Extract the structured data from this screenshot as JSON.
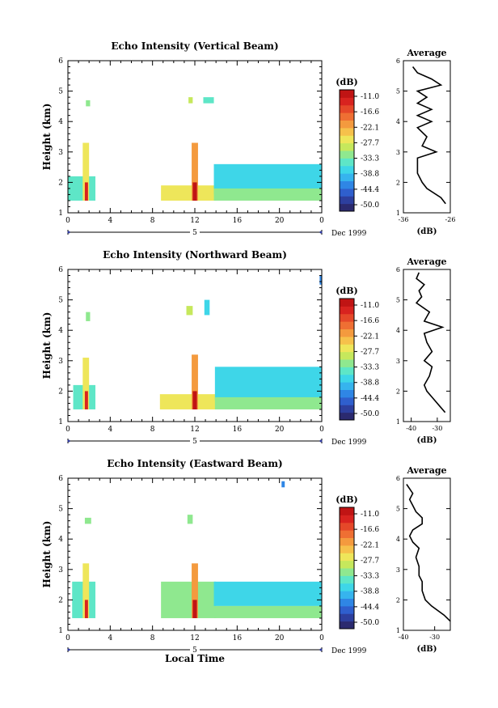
{
  "figure": {
    "xlabel": "Local Time",
    "x_ticks": [
      "0",
      "4",
      "8",
      "12",
      "16",
      "20",
      "0"
    ],
    "day_label": "5",
    "date_label": "Dec 1999",
    "y_ticks": [
      "1",
      "2",
      "3",
      "4",
      "5",
      "6"
    ],
    "ylabel": "Height (km)",
    "colorbar_unit": "(dB)",
    "colorbar_ticks": [
      "-11.0",
      "-16.6",
      "-22.1",
      "-27.7",
      "-33.3",
      "-38.8",
      "-44.4",
      "-50.0"
    ],
    "colors": {
      "scale": [
        "#2b2a6f",
        "#2d3f9e",
        "#2f5fcd",
        "#2f86e5",
        "#36b4ee",
        "#3ed6e8",
        "#5ee6c7",
        "#8fe88f",
        "#c6e85c",
        "#eee65a",
        "#f6c14b",
        "#f49a3e",
        "#ef6f33",
        "#e54829",
        "#d8231f",
        "#c01414"
      ]
    },
    "avg_title": "Average",
    "avg_xlabel": "(dB)"
  },
  "chart_data": [
    {
      "type": "heatmap",
      "title": "Echo Intensity (Vertical Beam)",
      "xlabel": "",
      "ylabel": "Height (km)",
      "xlim": [
        0,
        24
      ],
      "ylim": [
        1,
        6
      ],
      "patches": [
        {
          "t0": 0.0,
          "t1": 2.6,
          "h0": 1.4,
          "h1": 2.2,
          "v": -34
        },
        {
          "t0": 1.4,
          "t1": 2.0,
          "h0": 1.4,
          "h1": 3.3,
          "v": -26
        },
        {
          "t0": 1.6,
          "t1": 1.9,
          "h0": 1.4,
          "h1": 2.0,
          "v": -14
        },
        {
          "t0": 1.7,
          "t1": 2.1,
          "h0": 4.5,
          "h1": 4.7,
          "v": -32
        },
        {
          "t0": 8.8,
          "t1": 14.0,
          "h0": 1.4,
          "h1": 1.9,
          "v": -28
        },
        {
          "t0": 11.7,
          "t1": 12.3,
          "h0": 1.4,
          "h1": 3.3,
          "v": -22
        },
        {
          "t0": 11.8,
          "t1": 12.2,
          "h0": 1.4,
          "h1": 2.0,
          "v": -12
        },
        {
          "t0": 11.4,
          "t1": 11.8,
          "h0": 4.6,
          "h1": 4.8,
          "v": -30
        },
        {
          "t0": 12.8,
          "t1": 13.8,
          "h0": 4.6,
          "h1": 4.8,
          "v": -33
        },
        {
          "t0": 13.8,
          "t1": 24.0,
          "h0": 1.6,
          "h1": 2.6,
          "v": -37
        },
        {
          "t0": 13.8,
          "t1": 24.0,
          "h0": 1.4,
          "h1": 1.8,
          "v": -31
        }
      ],
      "average": {
        "xlim": [
          -36,
          -26
        ],
        "xticks": [
          "-36",
          "-26"
        ],
        "h": [
          1.3,
          1.5,
          1.8,
          2.0,
          2.3,
          2.6,
          2.8,
          3.0,
          3.2,
          3.5,
          3.8,
          4.0,
          4.2,
          4.4,
          4.6,
          4.8,
          5.0,
          5.2,
          5.4,
          5.6,
          5.8
        ],
        "db": [
          -27,
          -28,
          -31,
          -32,
          -33,
          -33,
          -33,
          -29,
          -32,
          -31,
          -33,
          -30,
          -33,
          -30,
          -33,
          -31,
          -33,
          -28,
          -30,
          -33,
          -34
        ]
      }
    },
    {
      "type": "heatmap",
      "title": "Echo Intensity (Northward Beam)",
      "xlabel": "",
      "ylabel": "Height (km)",
      "xlim": [
        0,
        24
      ],
      "ylim": [
        1,
        6
      ],
      "patches": [
        {
          "t0": 0.5,
          "t1": 2.6,
          "h0": 1.4,
          "h1": 2.2,
          "v": -34
        },
        {
          "t0": 1.4,
          "t1": 2.0,
          "h0": 1.4,
          "h1": 3.1,
          "v": -26
        },
        {
          "t0": 1.6,
          "t1": 1.9,
          "h0": 1.4,
          "h1": 2.0,
          "v": -14
        },
        {
          "t0": 1.7,
          "t1": 2.1,
          "h0": 4.3,
          "h1": 4.6,
          "v": -32
        },
        {
          "t0": 8.7,
          "t1": 14.0,
          "h0": 1.4,
          "h1": 1.9,
          "v": -28
        },
        {
          "t0": 11.7,
          "t1": 12.3,
          "h0": 1.4,
          "h1": 3.2,
          "v": -22
        },
        {
          "t0": 11.8,
          "t1": 12.2,
          "h0": 1.4,
          "h1": 2.0,
          "v": -12
        },
        {
          "t0": 11.2,
          "t1": 11.8,
          "h0": 4.5,
          "h1": 4.8,
          "v": -30
        },
        {
          "t0": 12.9,
          "t1": 13.4,
          "h0": 4.5,
          "h1": 5.0,
          "v": -36
        },
        {
          "t0": 13.9,
          "t1": 24.0,
          "h0": 1.7,
          "h1": 2.8,
          "v": -37
        },
        {
          "t0": 13.9,
          "t1": 24.0,
          "h0": 1.4,
          "h1": 1.8,
          "v": -31
        },
        {
          "t0": 23.8,
          "t1": 24.0,
          "h0": 5.5,
          "h1": 5.8,
          "v": -42
        }
      ],
      "average": {
        "xlim": [
          -43,
          -25
        ],
        "xticks": [
          "-40",
          "-30"
        ],
        "h": [
          1.3,
          1.5,
          1.8,
          2.0,
          2.2,
          2.5,
          2.8,
          3.0,
          3.3,
          3.6,
          3.9,
          4.1,
          4.3,
          4.6,
          4.9,
          5.1,
          5.3,
          5.5,
          5.7,
          5.9
        ],
        "db": [
          -27,
          -29,
          -32,
          -34,
          -35,
          -33,
          -32,
          -35,
          -32,
          -34,
          -35,
          -28,
          -35,
          -33,
          -38,
          -36,
          -37,
          -35,
          -38,
          -37
        ]
      }
    },
    {
      "type": "heatmap",
      "title": "Echo Intensity (Eastward Beam)",
      "xlabel": "Local Time",
      "ylabel": "Height (km)",
      "xlim": [
        0,
        24
      ],
      "ylim": [
        1,
        6
      ],
      "patches": [
        {
          "t0": 0.4,
          "t1": 2.6,
          "h0": 1.4,
          "h1": 2.6,
          "v": -34
        },
        {
          "t0": 1.4,
          "t1": 2.0,
          "h0": 1.4,
          "h1": 3.2,
          "v": -27
        },
        {
          "t0": 1.6,
          "t1": 1.9,
          "h0": 1.4,
          "h1": 2.0,
          "v": -14
        },
        {
          "t0": 1.6,
          "t1": 2.2,
          "h0": 4.5,
          "h1": 4.7,
          "v": -32
        },
        {
          "t0": 8.8,
          "t1": 14.0,
          "h0": 1.4,
          "h1": 2.6,
          "v": -32
        },
        {
          "t0": 11.7,
          "t1": 12.3,
          "h0": 1.4,
          "h1": 3.2,
          "v": -22
        },
        {
          "t0": 11.8,
          "t1": 12.2,
          "h0": 1.4,
          "h1": 2.0,
          "v": -12
        },
        {
          "t0": 11.3,
          "t1": 11.8,
          "h0": 4.5,
          "h1": 4.8,
          "v": -31
        },
        {
          "t0": 13.8,
          "t1": 24.0,
          "h0": 1.8,
          "h1": 2.6,
          "v": -37
        },
        {
          "t0": 13.8,
          "t1": 24.0,
          "h0": 1.4,
          "h1": 1.8,
          "v": -31
        },
        {
          "t0": 20.2,
          "t1": 20.5,
          "h0": 5.7,
          "h1": 5.9,
          "v": -42
        }
      ],
      "average": {
        "xlim": [
          -40,
          -25
        ],
        "xticks": [
          "-40",
          "-30"
        ],
        "h": [
          1.3,
          1.5,
          1.8,
          2.0,
          2.3,
          2.6,
          2.8,
          3.1,
          3.4,
          3.7,
          3.9,
          4.1,
          4.3,
          4.5,
          4.7,
          4.9,
          5.1,
          5.3,
          5.5,
          5.8
        ],
        "db": [
          -25,
          -27,
          -31,
          -33,
          -34,
          -34,
          -35,
          -35,
          -36,
          -35,
          -37,
          -38,
          -37,
          -34,
          -34,
          -36,
          -37,
          -38,
          -37,
          -39
        ]
      }
    }
  ]
}
